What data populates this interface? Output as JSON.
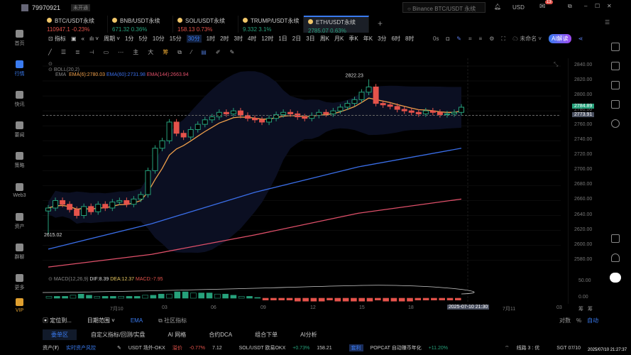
{
  "user": {
    "id": "79970921",
    "status": "未开通"
  },
  "search": {
    "placeholder": "Binance BTC/USDT 永续"
  },
  "currency": "USD",
  "mail_badge": "13",
  "tabs": [
    {
      "symbol": "BTC/USDT永续",
      "price": "110947.1",
      "change": "-0.23%",
      "dir": "down"
    },
    {
      "symbol": "BNB/USDT永续",
      "price": "671.32",
      "change": "0.36%",
      "dir": "up"
    },
    {
      "symbol": "SOL/USDT永续",
      "price": "158.13",
      "change": "0.73%",
      "dir": "down"
    },
    {
      "symbol": "TRUMP/USDT永续",
      "price": "9.332",
      "change": "3.1%",
      "dir": "up"
    },
    {
      "symbol": "ETH/USDT永续",
      "price": "2785.07",
      "change": "0.63%",
      "dir": "up",
      "active": true
    }
  ],
  "toolbar": {
    "indicator": "指标",
    "period": "周期",
    "intervals": [
      "1分",
      "5分",
      "10分",
      "15分",
      "30分",
      "1时",
      "2时",
      "3时",
      "4时",
      "12时",
      "1日",
      "2日",
      "3日",
      "周K",
      "月K",
      "季K",
      "年K",
      "3分",
      "6时",
      "8时"
    ],
    "active_interval": "30分",
    "countdown": "0s",
    "layout_name": "未命名",
    "ai": "AI解读"
  },
  "draw_tools": [
    "主",
    "大",
    "筹"
  ],
  "sidebar": [
    {
      "label": "首页"
    },
    {
      "label": "行情",
      "active": true
    },
    {
      "label": "快讯"
    },
    {
      "label": "要闻"
    },
    {
      "label": "策略"
    },
    {
      "label": "Web3"
    },
    {
      "label": "资产"
    },
    {
      "label": "群聊"
    },
    {
      "label": "更多"
    },
    {
      "label": "VIP"
    }
  ],
  "legend": {
    "boll": "BOLL(20,2)",
    "ema": "EMA",
    "ema6": "EMA(6):2780.03",
    "ema60": "EMA(60):2731.98",
    "ema144": "EMA(144):2663.94",
    "macd": "MACD(12,26,9)",
    "dif": "DIF:8.39",
    "dea": "DEA:12.37",
    "macd_val": "MACD:-7.95"
  },
  "chart_data": {
    "type": "candlestick",
    "closes": [
      2650,
      2660,
      2655,
      2648,
      2640,
      2652,
      2645,
      2655,
      2650,
      2658,
      2660,
      2655,
      2662,
      2668,
      2700,
      2730,
      2740,
      2765,
      2750,
      2745,
      2755,
      2762,
      2768,
      2772,
      2778,
      2776,
      2780,
      2774,
      2770,
      2768,
      2765,
      2770,
      2775,
      2778,
      2776,
      2772,
      2770,
      2774,
      2778,
      2776,
      2780,
      2785,
      2790,
      2795,
      2805,
      2812,
      2790,
      2788,
      2786,
      2782,
      2780,
      2778,
      2776,
      2780,
      2778,
      2775,
      2776,
      2778,
      2784.89
    ],
    "ema60": [
      2595,
      2629,
      2671,
      2705,
      2730
    ],
    "ema144": [
      2571,
      2588,
      2614,
      2643,
      2662
    ],
    "macd_hist": [
      1,
      1,
      1,
      2,
      3,
      2,
      1,
      1,
      1,
      1,
      1,
      1,
      2,
      2,
      3,
      3,
      5,
      5,
      4,
      4,
      4,
      3,
      3,
      2,
      1,
      1,
      0,
      -1,
      -1,
      -1,
      -1,
      -2,
      -2,
      -2,
      -2,
      -1,
      -2,
      -2,
      -2,
      -2,
      -2,
      -1,
      -2,
      -2,
      -2,
      -2,
      -1,
      -1,
      -1,
      -1,
      -1,
      -1
    ],
    "high_label": "2822.23",
    "low_label": "2615.02",
    "ylim": [
      2570,
      2850
    ],
    "price_ticks": [
      "2840.00",
      "2820.00",
      "2800.00",
      "2780.00",
      "2760.00",
      "2740.00",
      "2720.00",
      "2700.00",
      "2680.00",
      "2660.00",
      "2640.00",
      "2620.00",
      "2600.00",
      "2580.00"
    ],
    "macd_ticks": [
      "50.00",
      "0.00"
    ],
    "last_price": "2784.89",
    "cross_price": "2773.91",
    "time_ticks": [
      "7月10",
      "03",
      "06",
      "09",
      "12",
      "15",
      "18",
      "2025-07-10 21:30",
      "7月11",
      "03"
    ],
    "colors": {
      "up": "#26a17b",
      "down": "#e5534b",
      "ema6": "#f0a04b",
      "ema60": "#3a6ee8",
      "ema144": "#e0506a"
    }
  },
  "axis_extra": {
    "scale": "对数",
    "pct": "%",
    "auto": "自动",
    "first": "筹",
    "second": "筹"
  },
  "bottom": {
    "locate": "定位到...",
    "range": "日期范围",
    "ema": "EMA",
    "community": "社区指标",
    "tabs": [
      "委单区",
      "自定义指标/回测/实盘",
      "AI 网格",
      "合约DCA",
      "组合下单",
      "AI分析"
    ]
  },
  "ticker": {
    "assets": "资产(₮)",
    "risk": "实时资产风控",
    "i1": "USDT 场外-OKX",
    "i1_tag": "溢价",
    "i1_chg": "-0.77%",
    "i1_val": "7.12",
    "i2": "SOL/USDT 欧易OKX",
    "i2_chg": "+0.73%",
    "i2_val": "158.21",
    "tag": "套利",
    "i3": "POPCAT 自动赚币年化",
    "i3_chg": "+11.20%",
    "line": "线路 3 : 优",
    "tz": "SGT 07/10",
    "clock": "2025/07/10 21:27:37"
  }
}
